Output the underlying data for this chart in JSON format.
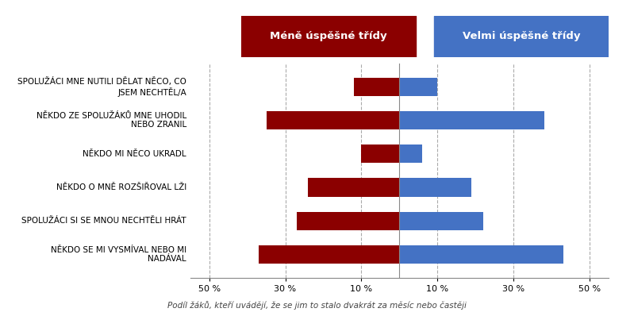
{
  "categories": [
    "NĚKDO SE MI VYSMÍVAL NEBO MI\nNADÁVAL",
    "SPOLUŽÁCI SI SE MNOU NECHTĚLI HRÁT",
    "NĚKDO O MNĚ ROZŠIŘOVAL LŽI",
    "NĚKDO MI NĚCO UKRADL",
    "NĚKDO ZE SPOLUŽÁKŮ MNE UHODIL\nNEBO ZRANIL",
    "SPOLUŽÁCI MNE NUTILI DĚLAT NĚCO, CO\nJSEM NECHTĚL/A"
  ],
  "mene_values": [
    37,
    27,
    24,
    10,
    35,
    12
  ],
  "velmi_values": [
    43,
    22,
    19,
    6,
    38,
    10
  ],
  "color_mene": "#8B0000",
  "color_velmi": "#4472C4",
  "legend_mene": "Méně úspěšné třídy",
  "legend_velmi": "Velmi úspěšné třídy",
  "xlabel_ticks": [
    -50,
    -30,
    -10,
    10,
    30,
    50
  ],
  "xlabel_labels": [
    "50 %",
    "30 %",
    "10 %",
    "10 %",
    "30 %",
    "50 %"
  ],
  "footnote": "Podíl žáků, kteří uvádějí, že se jim to stalo dvakrát za měsíc nebo častěji",
  "background_color": "#FFFFFF",
  "grid_color": "#AAAAAA",
  "title_fontsize": 11,
  "label_fontsize": 7.5,
  "tick_fontsize": 8
}
